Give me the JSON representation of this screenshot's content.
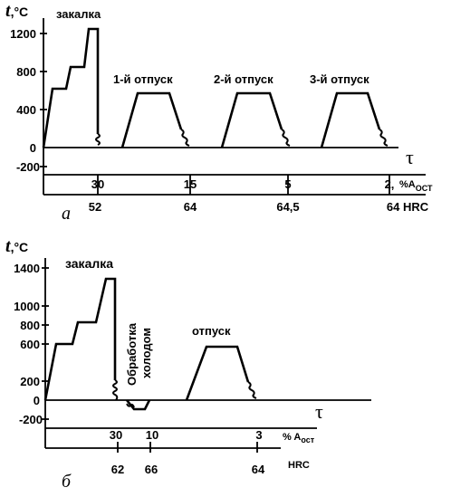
{
  "diagram_a": {
    "axis_t": "t",
    "axis_unit": ",°C",
    "y_ticks": [
      "1200",
      "800",
      "400",
      "0",
      "-200"
    ],
    "quench_label": "закалка",
    "temper_labels": [
      "1-й отпуск",
      "2-й отпуск",
      "3-й отпуск"
    ],
    "tau": "τ",
    "retained_austenite": [
      "30",
      "15",
      "5",
      "2,"
    ],
    "ra_label": "%A",
    "ra_subscript": "ОСТ",
    "hardness": [
      "52",
      "64",
      "64,5",
      "64 HRC"
    ],
    "panel_letter": "а"
  },
  "diagram_b": {
    "axis_t": "t",
    "axis_unit": ",°C",
    "y_ticks": [
      "1400",
      "1000",
      "800",
      "600",
      "200",
      "0",
      "-200"
    ],
    "quench_label": "закалка",
    "cold_label_1": "Обработка",
    "cold_label_2": "холодом",
    "temper_label": "отпуск",
    "tau": "τ",
    "retained_austenite": [
      "30",
      "10",
      "3"
    ],
    "ra_label": "% A",
    "ra_subscript": "ост",
    "hardness": [
      "62",
      "66",
      "64"
    ],
    "hrc_label": "HRC",
    "panel_letter": "б"
  }
}
